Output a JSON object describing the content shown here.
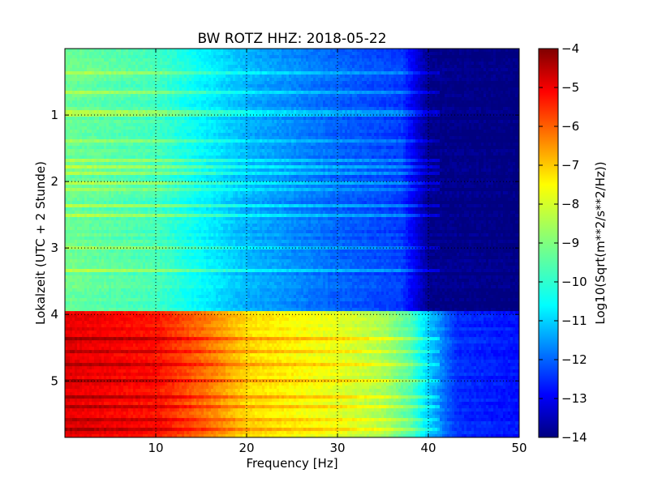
{
  "chart_data": {
    "type": "heatmap",
    "title": "BW ROTZ HHZ: 2018-05-22",
    "xlabel": "Frequency [Hz]",
    "ylabel": "Lokalzeit (UTC + 2 Stunde)",
    "colorbar_label": "Log10(Sqrt(m**2/s**2/Hz))",
    "xlim": [
      0,
      50
    ],
    "ylim": [
      5.85,
      0
    ],
    "x_ticks": [
      10,
      20,
      30,
      40,
      50
    ],
    "y_ticks": [
      1,
      2,
      3,
      4,
      5
    ],
    "colorbar_range": [
      -14,
      -4
    ],
    "colorbar_ticks": [
      -4,
      -5,
      -6,
      -7,
      -8,
      -9,
      -10,
      -11,
      -12,
      -13,
      -14
    ],
    "grid": true,
    "colormap": "jet",
    "segments": [
      {
        "time_range": [
          0,
          3.95
        ],
        "freq_profile": [
          {
            "f": 0,
            "v": -9.2
          },
          {
            "f": 10,
            "v": -9.6
          },
          {
            "f": 20,
            "v": -11.0
          },
          {
            "f": 30,
            "v": -11.8
          },
          {
            "f": 37,
            "v": -12.2
          },
          {
            "f": 40,
            "v": -13.9
          },
          {
            "f": 50,
            "v": -14.0
          }
        ],
        "bright_lines_hours": [
          0.35,
          0.65,
          0.95,
          1.35,
          1.65,
          1.75,
          1.85,
          2.0,
          2.1,
          2.35,
          2.5,
          2.95,
          3.3
        ]
      },
      {
        "time_range": [
          3.95,
          5.85
        ],
        "freq_profile": [
          {
            "f": 0,
            "v": -5.0
          },
          {
            "f": 10,
            "v": -5.4
          },
          {
            "f": 15,
            "v": -6.3
          },
          {
            "f": 20,
            "v": -7.4
          },
          {
            "f": 30,
            "v": -8.0
          },
          {
            "f": 35,
            "v": -8.6
          },
          {
            "f": 38,
            "v": -9.5
          },
          {
            "f": 40,
            "v": -10.8
          },
          {
            "f": 43,
            "v": -12.3
          },
          {
            "f": 50,
            "v": -12.6
          }
        ],
        "bright_lines_hours": [
          4.35,
          4.55,
          4.75,
          4.95,
          5.2,
          5.35,
          5.55,
          5.7
        ]
      }
    ]
  }
}
